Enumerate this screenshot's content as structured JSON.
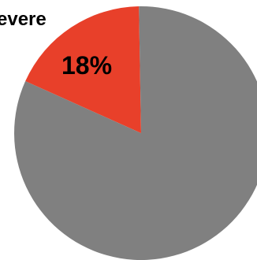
{
  "chart_data": {
    "type": "pie",
    "slices": [
      {
        "label": "Severe",
        "value": 18,
        "value_label": "18%",
        "color": "#e8402a"
      },
      {
        "label": "",
        "value": 82,
        "value_label": "",
        "color": "#808080"
      }
    ],
    "visible_label_text": "evere",
    "legend": "none"
  }
}
